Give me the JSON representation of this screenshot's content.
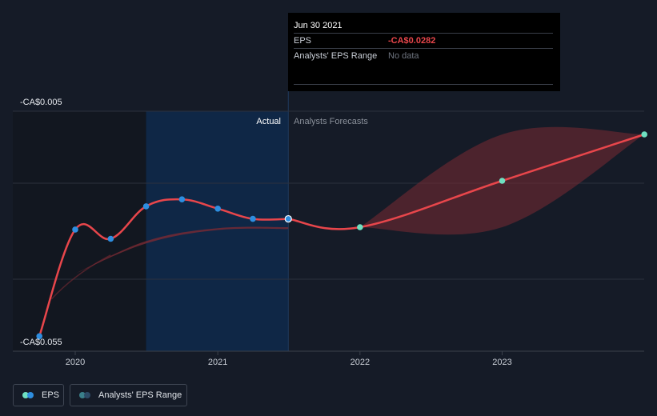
{
  "chart_data": {
    "type": "line",
    "title": "",
    "y_axis": {
      "range": [
        -0.055,
        -0.005
      ],
      "top_label": "-CA$0.005",
      "bottom_label": "-CA$0.055"
    },
    "x_axis": {
      "ticks": [
        "2020",
        "2021",
        "2022",
        "2023"
      ],
      "range": [
        "2019-09-30",
        "2023-12-31"
      ]
    },
    "regions": {
      "actual_label": "Actual",
      "forecast_label": "Analysts Forecasts"
    },
    "series": [
      {
        "name": "EPS",
        "kind": "actual",
        "points": [
          {
            "date": "2019-09-30",
            "value": -0.0535
          },
          {
            "date": "2019-12-31",
            "value": -0.0305
          },
          {
            "date": "2020-03-31",
            "value": -0.0325
          },
          {
            "date": "2020-06-30",
            "value": -0.0255
          },
          {
            "date": "2020-09-30",
            "value": -0.024
          },
          {
            "date": "2020-12-31",
            "value": -0.026
          },
          {
            "date": "2021-03-31",
            "value": -0.0282
          },
          {
            "date": "2021-06-30",
            "value": -0.0282
          }
        ]
      },
      {
        "name": "EPS",
        "kind": "forecast",
        "points": [
          {
            "date": "2021-06-30",
            "value": -0.0282
          },
          {
            "date": "2021-12-31",
            "value": -0.03
          },
          {
            "date": "2022-12-31",
            "value": -0.02
          },
          {
            "date": "2023-12-31",
            "value": -0.01
          }
        ]
      }
    ],
    "analyst_range_forecast": {
      "dates": [
        "2021-12-31",
        "2022-12-31",
        "2023-12-31"
      ],
      "high": [
        -0.03,
        -0.01,
        -0.01
      ],
      "low": [
        -0.03,
        -0.03,
        -0.01
      ]
    },
    "analyst_range_history": {
      "dates": [
        "2019-12-31",
        "2020-06-30",
        "2020-12-31",
        "2021-06-30"
      ],
      "high": [
        -0.04,
        -0.033,
        -0.0302,
        -0.03
      ],
      "low": [
        -0.04,
        -0.0335,
        -0.0306,
        -0.0304
      ]
    },
    "colors": {
      "eps_line": "#e8464b",
      "actual_point": "#2e8ee0",
      "forecast_point": "#6fe0c1",
      "range_fill": "#7a2a33",
      "actual_band": "#0f2746",
      "past_band": "#121720"
    },
    "grid": true
  },
  "tooltip": {
    "date": "Jun 30 2021",
    "eps_label": "EPS",
    "eps_value": "-CA$0.0282",
    "range_label": "Analysts' EPS Range",
    "range_value": "No data"
  },
  "legend": {
    "eps_label": "EPS",
    "range_label": "Analysts' EPS Range",
    "eps_dot_colors": [
      "#6fe0c1",
      "#2e8ee0"
    ],
    "range_dot_colors": [
      "#3a7f8a",
      "#2d4a66"
    ]
  }
}
